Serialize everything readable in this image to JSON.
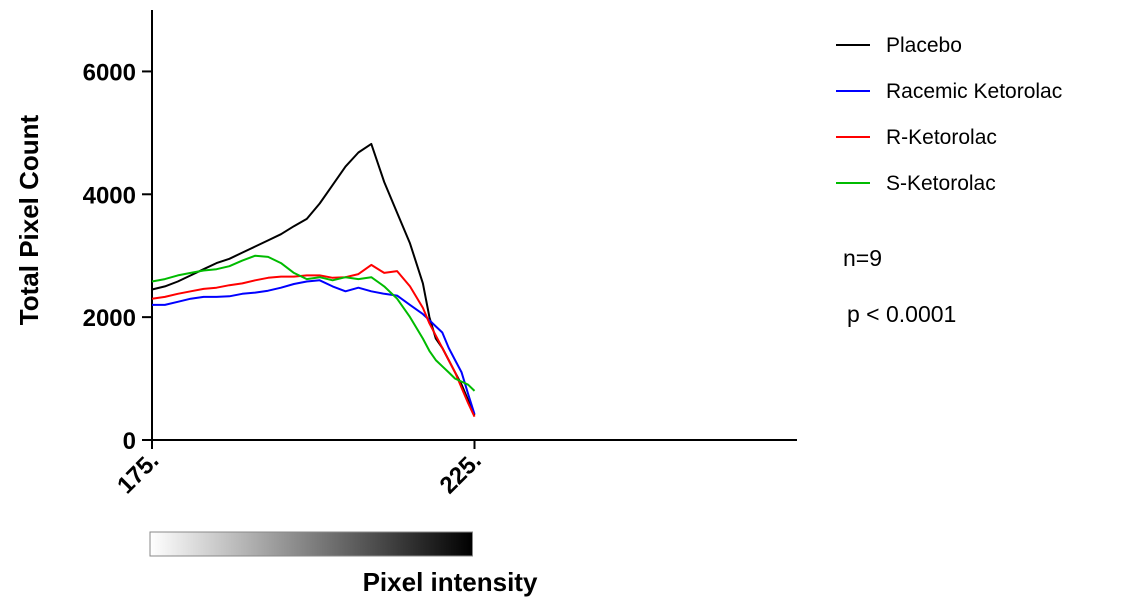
{
  "chart_data": {
    "type": "line",
    "xlabel": "Pixel intensity",
    "ylabel": "Total Pixel Count",
    "xlim": [
      175,
      275
    ],
    "ylim": [
      0,
      7000
    ],
    "x_ticks": [
      175,
      225
    ],
    "x_tick_labels": [
      "175.",
      "225."
    ],
    "y_ticks": [
      0,
      2000,
      4000,
      6000
    ],
    "y_tick_labels": [
      "0",
      "2000",
      "4000",
      "6000"
    ],
    "grid": false,
    "legend_position": "top-right",
    "gradient_bar": {
      "range": [
        175,
        225
      ],
      "from_color": "#ffffff",
      "to_color": "#000000"
    },
    "annotations": [
      "n=9",
      "p < 0.0001"
    ],
    "x": [
      175,
      177,
      179,
      181,
      183,
      185,
      187,
      189,
      191,
      193,
      195,
      197,
      199,
      201,
      203,
      205,
      207,
      209,
      211,
      213,
      215,
      217,
      218,
      219,
      220,
      221,
      222,
      223,
      224,
      225
    ],
    "series": [
      {
        "name": "Placebo",
        "color": "#000000",
        "values": [
          2450,
          2500,
          2580,
          2680,
          2780,
          2880,
          2950,
          3050,
          3150,
          3250,
          3350,
          3480,
          3600,
          3850,
          4150,
          4450,
          4680,
          4820,
          4200,
          3700,
          3200,
          2550,
          2000,
          1650,
          1500,
          1300,
          1100,
          900,
          650,
          400
        ]
      },
      {
        "name": "Racemic Ketorolac",
        "color": "#0000ff",
        "values": [
          2200,
          2200,
          2250,
          2300,
          2330,
          2330,
          2340,
          2380,
          2400,
          2430,
          2480,
          2540,
          2580,
          2600,
          2500,
          2420,
          2480,
          2420,
          2380,
          2350,
          2200,
          2050,
          1950,
          1850,
          1750,
          1500,
          1300,
          1100,
          750,
          420
        ]
      },
      {
        "name": "R-Ketorolac",
        "color": "#ff0000",
        "values": [
          2300,
          2330,
          2380,
          2420,
          2460,
          2480,
          2520,
          2550,
          2600,
          2640,
          2660,
          2660,
          2680,
          2680,
          2640,
          2650,
          2700,
          2850,
          2720,
          2750,
          2500,
          2150,
          1900,
          1700,
          1500,
          1300,
          1100,
          850,
          600,
          380
        ]
      },
      {
        "name": "S-Ketorolac",
        "color": "#00bb00",
        "values": [
          2580,
          2620,
          2680,
          2720,
          2760,
          2780,
          2830,
          2920,
          3000,
          2980,
          2880,
          2720,
          2620,
          2650,
          2600,
          2650,
          2620,
          2650,
          2500,
          2300,
          2000,
          1650,
          1450,
          1300,
          1200,
          1100,
          1000,
          950,
          900,
          800
        ]
      }
    ]
  }
}
